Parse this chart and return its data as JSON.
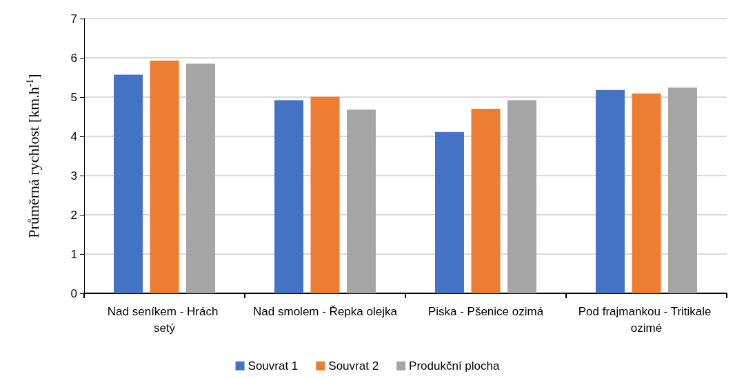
{
  "chart_data": {
    "type": "bar",
    "ylabel": "Průměrná rychlost [km.h$^{-1}$]",
    "categories": [
      "Nad seníkem - Hrách setý",
      "Nad smolem - Řepka olejka",
      "Piska - Pšenice ozimá",
      "Pod frajmankou - Tritikale ozimé"
    ],
    "series": [
      {
        "name": "Souvrat 1",
        "color": "#4472c4",
        "values": [
          5.57,
          4.92,
          4.11,
          5.18
        ]
      },
      {
        "name": "Souvrat 2",
        "color": "#ed7d31",
        "values": [
          5.93,
          5.01,
          4.7,
          5.09
        ]
      },
      {
        "name": "Produkční plocha",
        "color": "#a5a5a5",
        "values": [
          5.85,
          4.68,
          4.92,
          5.24
        ]
      }
    ],
    "ylim": [
      0,
      7
    ],
    "yticks": [
      0,
      1,
      2,
      3,
      4,
      5,
      6,
      7
    ],
    "grid": "y",
    "legend": "bottom"
  }
}
